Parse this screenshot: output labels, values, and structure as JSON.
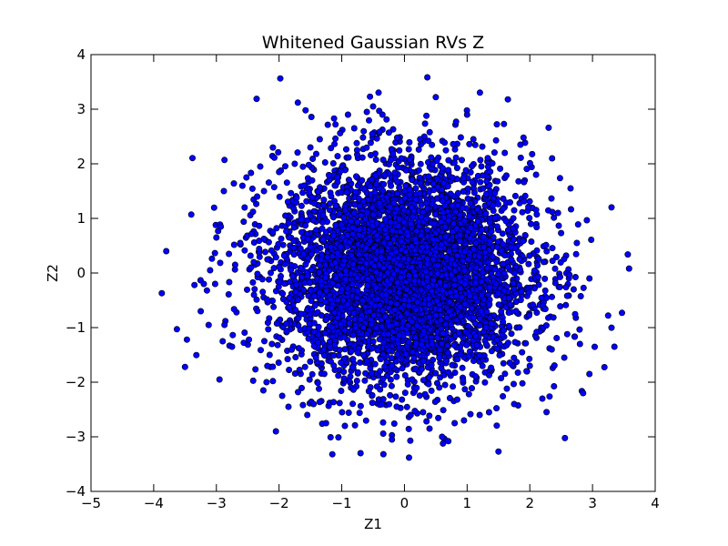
{
  "chart_data": {
    "type": "scatter",
    "title": "Whitened Gaussian RVs Z",
    "xlabel": "Z1",
    "ylabel": "Z2",
    "xlim": [
      -5,
      4
    ],
    "ylim": [
      -4,
      4
    ],
    "xticks": [
      -5,
      -4,
      -3,
      -2,
      -1,
      0,
      1,
      2,
      3,
      4
    ],
    "yticks": [
      -4,
      -3,
      -2,
      -1,
      0,
      1,
      2,
      3,
      4
    ],
    "xtick_labels": [
      "−5",
      "−4",
      "−3",
      "−2",
      "−1",
      "0",
      "1",
      "2",
      "3",
      "4"
    ],
    "ytick_labels": [
      "−4",
      "−3",
      "−2",
      "−1",
      "0",
      "1",
      "2",
      "3",
      "4"
    ],
    "grid": false,
    "legend": "none",
    "marker_color": "#0000ff",
    "marker_edge_color": "#000000",
    "distribution": {
      "kind": "bivariate-normal",
      "mean": [
        0,
        0
      ],
      "std": [
        1,
        1
      ],
      "approx_points": 5000
    },
    "points": [
      [
        -3.87,
        -0.37
      ],
      [
        -3.8,
        0.4
      ],
      [
        -3.63,
        -1.03
      ],
      [
        -3.5,
        -1.72
      ],
      [
        -3.47,
        -1.22
      ],
      [
        -3.4,
        1.07
      ],
      [
        -3.35,
        -0.22
      ],
      [
        -3.25,
        -0.7
      ],
      [
        -3.2,
        -0.2
      ],
      [
        -3.15,
        -0.32
      ],
      [
        -3.1,
        0.05
      ],
      [
        -3.02,
        -0.2
      ],
      [
        -3.0,
        0.65
      ],
      [
        -2.95,
        -1.95
      ],
      [
        -2.93,
        0.85
      ],
      [
        -2.9,
        -1.25
      ],
      [
        -2.88,
        1.5
      ],
      [
        -2.87,
        2.07
      ],
      [
        -2.87,
        -0.95
      ],
      [
        -2.8,
        0.35
      ],
      [
        -2.75,
        -1.35
      ],
      [
        -2.7,
        0.15
      ],
      [
        -2.62,
        0.55
      ],
      [
        -2.55,
        1.2
      ],
      [
        -2.52,
        1.75
      ],
      [
        -2.48,
        -1.22
      ],
      [
        -2.45,
        0.1
      ],
      [
        -2.4,
        -0.4
      ],
      [
        -2.35,
        1.4
      ],
      [
        -2.3,
        1.95
      ],
      [
        -2.25,
        -2.15
      ],
      [
        -2.2,
        -2.0
      ],
      [
        -2.15,
        -1.5
      ],
      [
        -2.1,
        0.75
      ],
      [
        -2.05,
        -2.9
      ],
      [
        -2.0,
        1.85
      ],
      [
        -1.95,
        -2.25
      ],
      [
        -1.9,
        1.05
      ],
      [
        -1.85,
        -2.45
      ],
      [
        -1.75,
        2.0
      ],
      [
        -1.7,
        3.12
      ],
      [
        -1.65,
        -0.75
      ],
      [
        -1.6,
        1.6
      ],
      [
        -1.55,
        -2.6
      ],
      [
        -1.5,
        2.3
      ],
      [
        -1.45,
        -2.4
      ],
      [
        -1.35,
        2.45
      ],
      [
        -1.25,
        -2.75
      ],
      [
        -1.15,
        -3.32
      ],
      [
        -1.1,
        2.72
      ],
      [
        -0.95,
        -2.8
      ],
      [
        -0.9,
        2.9
      ],
      [
        -0.8,
        2.65
      ],
      [
        -0.7,
        -3.3
      ],
      [
        -0.6,
        2.95
      ],
      [
        -0.55,
        3.23
      ],
      [
        -0.5,
        3.05
      ],
      [
        -0.35,
        2.9
      ],
      [
        -0.2,
        -3.05
      ],
      [
        -0.05,
        2.1
      ],
      [
        0.1,
        -2.6
      ],
      [
        0.25,
        2.45
      ],
      [
        0.35,
        2.88
      ],
      [
        0.4,
        -2.85
      ],
      [
        0.5,
        3.22
      ],
      [
        0.6,
        -3.0
      ],
      [
        0.7,
        -3.08
      ],
      [
        0.8,
        -2.75
      ],
      [
        0.95,
        -2.7
      ],
      [
        1.0,
        2.9
      ],
      [
        1.1,
        2.45
      ],
      [
        1.2,
        -2.6
      ],
      [
        1.35,
        -2.55
      ],
      [
        1.5,
        -3.27
      ],
      [
        1.6,
        2.2
      ],
      [
        1.65,
        3.18
      ],
      [
        1.75,
        -2.4
      ],
      [
        1.85,
        2.35
      ],
      [
        1.9,
        2.48
      ],
      [
        2.0,
        -1.7
      ],
      [
        2.1,
        1.8
      ],
      [
        2.2,
        -2.3
      ],
      [
        2.3,
        2.66
      ],
      [
        2.35,
        -1.4
      ],
      [
        2.45,
        1.1
      ],
      [
        2.55,
        -1.55
      ],
      [
        2.65,
        1.55
      ],
      [
        2.7,
        -0.3
      ],
      [
        2.75,
        0.55
      ],
      [
        2.8,
        -1.3
      ],
      [
        2.85,
        -2.2
      ],
      [
        2.95,
        -1.85
      ],
      [
        2.95,
        -0.1
      ],
      [
        3.25,
        -0.78
      ],
      [
        3.35,
        -1.35
      ],
      [
        3.47,
        -0.73
      ]
    ]
  }
}
